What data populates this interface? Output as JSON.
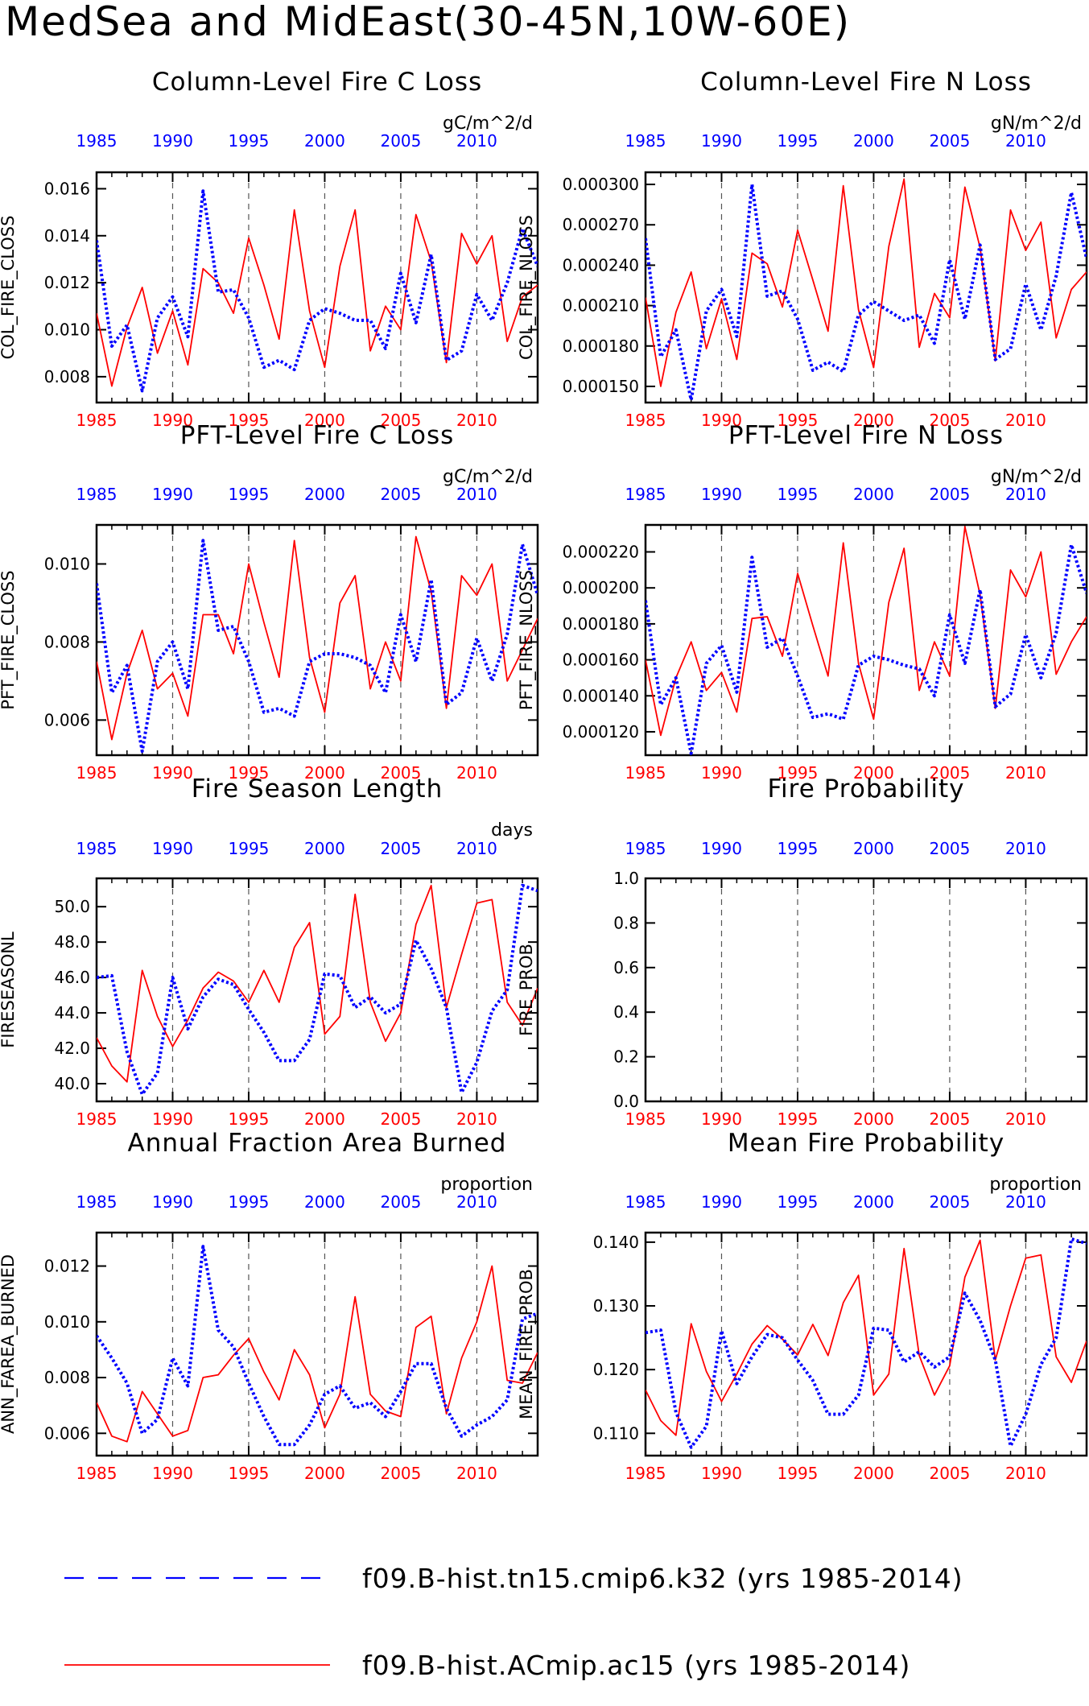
{
  "page_title": "MedSea and MidEast(30-45N,10W-60E)",
  "colors": {
    "blue": "#0000ff",
    "red": "#ff0000",
    "axis": "#000000",
    "grid": "#555555"
  },
  "x_years": [
    1985,
    1986,
    1987,
    1988,
    1989,
    1990,
    1991,
    1992,
    1993,
    1994,
    1995,
    1996,
    1997,
    1998,
    1999,
    2000,
    2001,
    2002,
    2003,
    2004,
    2005,
    2006,
    2007,
    2008,
    2009,
    2010,
    2011,
    2012,
    2013,
    2014
  ],
  "xaxis": {
    "ticks": [
      "1985",
      "1990",
      "1995",
      "2000",
      "2005",
      "2010"
    ],
    "xlim": [
      1985,
      2014
    ],
    "gridlines": [
      1990,
      1995,
      2000,
      2005,
      2010
    ]
  },
  "legend": [
    {
      "label": "f09.B-hist.tn15.cmip6.k32 (yrs 1985-2014)",
      "color": "#0000ff",
      "style": "dashed"
    },
    {
      "label": "f09.B-hist.ACmip.ac15 (yrs 1985-2014)",
      "color": "#ff0000",
      "style": "solid"
    }
  ],
  "chart_data": [
    {
      "type": "line",
      "title": "Column-Level Fire C Loss",
      "units": "gC/m^2/d",
      "ylabel": "COL_FIRE_CLOSS",
      "ylim": [
        0.0069,
        0.0167
      ],
      "yticks": [
        {
          "v": 0.008,
          "t": "0.008"
        },
        {
          "v": 0.01,
          "t": "0.010"
        },
        {
          "v": 0.012,
          "t": "0.012"
        },
        {
          "v": 0.014,
          "t": "0.014"
        },
        {
          "v": 0.016,
          "t": "0.016"
        }
      ],
      "series": [
        {
          "color": "blue",
          "values": [
            0.0138,
            0.0093,
            0.0102,
            0.0074,
            0.0105,
            0.0114,
            0.0097,
            0.0159,
            0.0116,
            0.0117,
            0.0105,
            0.0084,
            0.0087,
            0.0083,
            0.0104,
            0.0109,
            0.0107,
            0.0104,
            0.0104,
            0.0092,
            0.0124,
            0.0103,
            0.0132,
            0.0087,
            0.0091,
            0.0115,
            0.0104,
            0.012,
            0.0143,
            0.0127
          ]
        },
        {
          "color": "red",
          "values": [
            0.0107,
            0.0076,
            0.0101,
            0.0118,
            0.009,
            0.0108,
            0.0085,
            0.0126,
            0.012,
            0.0107,
            0.0139,
            0.0119,
            0.0096,
            0.0151,
            0.0108,
            0.0084,
            0.0127,
            0.0151,
            0.0091,
            0.011,
            0.01,
            0.0149,
            0.0129,
            0.0086,
            0.0141,
            0.0128,
            0.014,
            0.0095,
            0.0114,
            0.0119
          ]
        }
      ]
    },
    {
      "type": "line",
      "title": "Column-Level Fire N Loss",
      "units": "gN/m^2/d",
      "ylabel": "COL_FIRE_NLOSS",
      "ylim": [
        0.000138,
        0.000309
      ],
      "yticks": [
        {
          "v": 0.00015,
          "t": "0.000150"
        },
        {
          "v": 0.00018,
          "t": "0.000180"
        },
        {
          "v": 0.00021,
          "t": "0.000210"
        },
        {
          "v": 0.00024,
          "t": "0.000240"
        },
        {
          "v": 0.00027,
          "t": "0.000270"
        },
        {
          "v": 0.0003,
          "t": "0.000300"
        }
      ],
      "series": [
        {
          "color": "blue",
          "values": [
            0.00026,
            0.000172,
            0.000192,
            0.00014,
            0.000206,
            0.000222,
            0.000187,
            0.0003,
            0.000217,
            0.000221,
            0.0002,
            0.000162,
            0.000168,
            0.000161,
            0.000203,
            0.000213,
            0.000206,
            0.000199,
            0.000203,
            0.000182,
            0.000244,
            0.0002,
            0.000255,
            0.00017,
            0.000178,
            0.000226,
            0.000192,
            0.000232,
            0.000294,
            0.000245
          ]
        },
        {
          "color": "red",
          "values": [
            0.000216,
            0.00015,
            0.000205,
            0.000235,
            0.000178,
            0.000215,
            0.00017,
            0.000249,
            0.000241,
            0.000209,
            0.000266,
            0.000229,
            0.000191,
            0.000299,
            0.000207,
            0.000164,
            0.000254,
            0.000304,
            0.000179,
            0.000219,
            0.000201,
            0.000298,
            0.000253,
            0.000169,
            0.000281,
            0.000251,
            0.000272,
            0.000186,
            0.000222,
            0.000235
          ]
        }
      ]
    },
    {
      "type": "line",
      "title": "PFT-Level Fire C Loss",
      "units": "gC/m^2/d",
      "ylabel": "PFT_FIRE_CLOSS",
      "ylim": [
        0.0051,
        0.011
      ],
      "yticks": [
        {
          "v": 0.006,
          "t": "0.006"
        },
        {
          "v": 0.008,
          "t": "0.008"
        },
        {
          "v": 0.01,
          "t": "0.010"
        }
      ],
      "series": [
        {
          "color": "blue",
          "values": [
            0.0095,
            0.0067,
            0.0074,
            0.0052,
            0.0075,
            0.008,
            0.0068,
            0.0106,
            0.0083,
            0.0084,
            0.0075,
            0.0062,
            0.0063,
            0.0061,
            0.0075,
            0.0077,
            0.0077,
            0.0076,
            0.0074,
            0.0067,
            0.0087,
            0.0075,
            0.0096,
            0.0064,
            0.0067,
            0.0081,
            0.007,
            0.0082,
            0.0105,
            0.0092
          ]
        },
        {
          "color": "red",
          "values": [
            0.0075,
            0.0055,
            0.0072,
            0.0083,
            0.0068,
            0.0072,
            0.0061,
            0.0087,
            0.0087,
            0.0077,
            0.01,
            0.0085,
            0.0071,
            0.0106,
            0.0076,
            0.0062,
            0.009,
            0.0097,
            0.0068,
            0.008,
            0.007,
            0.0107,
            0.0093,
            0.0063,
            0.0097,
            0.0092,
            0.01,
            0.007,
            0.0078,
            0.0086
          ]
        }
      ]
    },
    {
      "type": "line",
      "title": "PFT-Level Fire N Loss",
      "units": "gN/m^2/d",
      "ylabel": "PFT_FIRE_NLOSS",
      "ylim": [
        0.000107,
        0.000235
      ],
      "yticks": [
        {
          "v": 0.00012,
          "t": "0.000120"
        },
        {
          "v": 0.00014,
          "t": "0.000140"
        },
        {
          "v": 0.00016,
          "t": "0.000160"
        },
        {
          "v": 0.00018,
          "t": "0.000180"
        },
        {
          "v": 0.0002,
          "t": "0.000200"
        },
        {
          "v": 0.00022,
          "t": "0.000220"
        }
      ],
      "series": [
        {
          "color": "blue",
          "values": [
            0.000193,
            0.000135,
            0.00015,
            0.000108,
            0.000158,
            0.000168,
            0.000142,
            0.000217,
            0.000167,
            0.000172,
            0.000151,
            0.000128,
            0.00013,
            0.000127,
            0.000157,
            0.000162,
            0.00016,
            0.000157,
            0.000155,
            0.00014,
            0.000185,
            0.000158,
            0.000199,
            0.000134,
            0.000141,
            0.000174,
            0.00015,
            0.000175,
            0.000224,
            0.000197
          ]
        },
        {
          "color": "red",
          "values": [
            0.00016,
            0.000118,
            0.00015,
            0.00017,
            0.000143,
            0.000153,
            0.000131,
            0.000183,
            0.000184,
            0.000162,
            0.000208,
            0.000179,
            0.000151,
            0.000225,
            0.000158,
            0.000127,
            0.000192,
            0.000222,
            0.000143,
            0.00017,
            0.000151,
            0.000234,
            0.000196,
            0.000133,
            0.00021,
            0.000195,
            0.00022,
            0.000152,
            0.00017,
            0.000184
          ]
        }
      ]
    },
    {
      "type": "line",
      "title": "Fire Season Length",
      "units": "days",
      "ylabel": "FIRESEASONL",
      "ylim": [
        39.0,
        51.6
      ],
      "yticks": [
        {
          "v": 40,
          "t": "40.0"
        },
        {
          "v": 42,
          "t": "42.0"
        },
        {
          "v": 44,
          "t": "44.0"
        },
        {
          "v": 46,
          "t": "46.0"
        },
        {
          "v": 48,
          "t": "48.0"
        },
        {
          "v": 50,
          "t": "50.0"
        }
      ],
      "series": [
        {
          "color": "blue",
          "values": [
            46.0,
            46.1,
            41.8,
            39.4,
            40.6,
            46.0,
            43.1,
            44.9,
            45.9,
            45.6,
            44.2,
            42.9,
            41.3,
            41.3,
            42.5,
            46.2,
            46.1,
            44.3,
            44.9,
            44.0,
            44.5,
            48.1,
            46.5,
            44.3,
            39.5,
            41.2,
            44.1,
            45.3,
            51.2,
            50.9
          ]
        },
        {
          "color": "red",
          "values": [
            42.6,
            41.0,
            40.1,
            46.4,
            43.8,
            42.1,
            43.6,
            45.4,
            46.3,
            45.8,
            44.6,
            46.4,
            44.6,
            47.7,
            49.1,
            42.8,
            43.8,
            50.7,
            44.6,
            42.4,
            44.0,
            49.0,
            51.2,
            44.3,
            47.3,
            50.2,
            50.4,
            44.6,
            43.3,
            45.4
          ]
        }
      ]
    },
    {
      "type": "line",
      "title": "Fire Probability",
      "units": "",
      "ylabel": "FIRE_PROB",
      "ylim": [
        0.0,
        1.0
      ],
      "yticks": [
        {
          "v": 0.0,
          "t": "0.0"
        },
        {
          "v": 0.2,
          "t": "0.2"
        },
        {
          "v": 0.4,
          "t": "0.4"
        },
        {
          "v": 0.6,
          "t": "0.6"
        },
        {
          "v": 0.8,
          "t": "0.8"
        },
        {
          "v": 1.0,
          "t": "1.0"
        }
      ],
      "series": []
    },
    {
      "type": "line",
      "title": "Annual Fraction Area Burned",
      "units": "proportion",
      "ylabel": "ANN_FAREA_BURNED",
      "ylim": [
        0.0052,
        0.0132
      ],
      "yticks": [
        {
          "v": 0.006,
          "t": "0.006"
        },
        {
          "v": 0.008,
          "t": "0.008"
        },
        {
          "v": 0.01,
          "t": "0.010"
        },
        {
          "v": 0.012,
          "t": "0.012"
        }
      ],
      "series": [
        {
          "color": "blue",
          "values": [
            0.0095,
            0.0087,
            0.0078,
            0.006,
            0.0065,
            0.0087,
            0.0077,
            0.0127,
            0.0097,
            0.0091,
            0.0078,
            0.0066,
            0.0056,
            0.0056,
            0.0063,
            0.0074,
            0.0077,
            0.0069,
            0.0071,
            0.0066,
            0.0075,
            0.0085,
            0.0085,
            0.0069,
            0.0059,
            0.0063,
            0.0066,
            0.0072,
            0.0101,
            0.0103
          ]
        },
        {
          "color": "red",
          "values": [
            0.0071,
            0.0059,
            0.0057,
            0.0075,
            0.0067,
            0.0059,
            0.0061,
            0.008,
            0.0081,
            0.0088,
            0.0094,
            0.0082,
            0.0072,
            0.009,
            0.0081,
            0.0062,
            0.0074,
            0.0109,
            0.0074,
            0.0068,
            0.0066,
            0.0098,
            0.0102,
            0.0067,
            0.0087,
            0.01,
            0.012,
            0.0079,
            0.0078,
            0.0089
          ]
        }
      ]
    },
    {
      "type": "line",
      "title": "Mean Fire Probability",
      "units": "proportion",
      "ylabel": "MEAN_FIRE_PROB",
      "ylim": [
        0.1065,
        0.1415
      ],
      "yticks": [
        {
          "v": 0.11,
          "t": "0.110"
        },
        {
          "v": 0.12,
          "t": "0.120"
        },
        {
          "v": 0.13,
          "t": "0.130"
        },
        {
          "v": 0.14,
          "t": "0.140"
        }
      ],
      "series": [
        {
          "color": "blue",
          "values": [
            0.1258,
            0.1262,
            0.1133,
            0.1078,
            0.1111,
            0.1261,
            0.1178,
            0.122,
            0.1255,
            0.125,
            0.1215,
            0.1183,
            0.113,
            0.113,
            0.116,
            0.1265,
            0.1262,
            0.1212,
            0.1228,
            0.1204,
            0.122,
            0.132,
            0.1277,
            0.1215,
            0.108,
            0.113,
            0.1208,
            0.125,
            0.1405,
            0.1398
          ]
        },
        {
          "color": "red",
          "values": [
            0.1168,
            0.112,
            0.1097,
            0.1272,
            0.1197,
            0.115,
            0.1193,
            0.124,
            0.1269,
            0.1248,
            0.1223,
            0.1271,
            0.1222,
            0.1305,
            0.1348,
            0.116,
            0.1193,
            0.139,
            0.1222,
            0.116,
            0.1206,
            0.1345,
            0.1403,
            0.1215,
            0.13,
            0.1375,
            0.138,
            0.122,
            0.118,
            0.1245
          ]
        }
      ]
    }
  ]
}
